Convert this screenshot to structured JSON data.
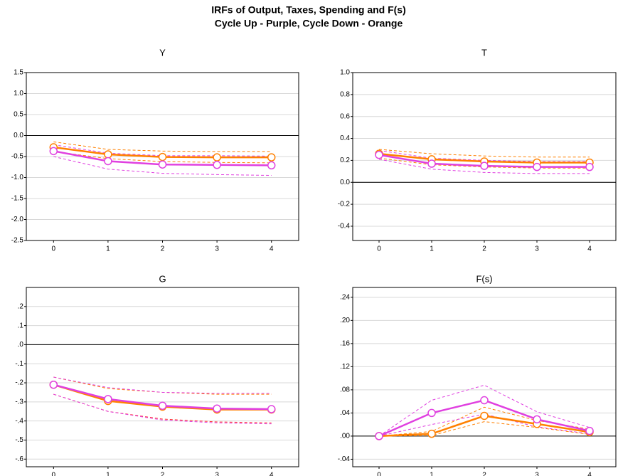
{
  "title": "IRFs of Output, Taxes, Spending and F(s)",
  "subtitle": "Cycle Up - Purple, Cycle Down - Orange",
  "chart_data": [
    {
      "type": "line",
      "title": "Y",
      "x": [
        0,
        1,
        2,
        3,
        4
      ],
      "xlim": [
        -0.5,
        4.5
      ],
      "xticks": [
        0,
        1,
        2,
        3,
        4
      ],
      "ylim": [
        -2.5,
        1.5
      ],
      "yticks": [
        1.5,
        {
          "value": 1.0,
          "label": "1.0"
        },
        0.5,
        {
          "value": 0.0,
          "label": "0.0"
        },
        -0.5,
        {
          "value": -1.0,
          "label": "-1.0"
        },
        -1.5,
        {
          "value": -2.0,
          "label": "-2.0"
        },
        -2.5
      ],
      "grid": true,
      "series": [
        {
          "color": "#ff8000",
          "style": "dashed",
          "values": [
            -0.15,
            -0.33,
            -0.37,
            -0.38,
            -0.38
          ]
        },
        {
          "color": "#ff8000",
          "style": "dashed",
          "values": [
            -0.38,
            -0.55,
            -0.62,
            -0.64,
            -0.65
          ]
        },
        {
          "color": "#e040e0",
          "style": "dashed",
          "values": [
            -0.22,
            -0.42,
            -0.48,
            -0.48,
            -0.49
          ]
        },
        {
          "color": "#e040e0",
          "style": "dashed",
          "values": [
            -0.5,
            -0.8,
            -0.9,
            -0.93,
            -0.95
          ]
        },
        {
          "color": "#ff8000",
          "style": "solid",
          "markers": true,
          "values": [
            -0.28,
            -0.45,
            -0.51,
            -0.52,
            -0.52
          ]
        },
        {
          "color": "#e040e0",
          "style": "solid",
          "markers": true,
          "values": [
            -0.37,
            -0.61,
            -0.69,
            -0.7,
            -0.71
          ]
        }
      ]
    },
    {
      "type": "line",
      "title": "T",
      "x": [
        0,
        1,
        2,
        3,
        4
      ],
      "xlim": [
        -0.5,
        4.5
      ],
      "xticks": [
        0,
        1,
        2,
        3,
        4
      ],
      "ylim": [
        -0.53,
        1.0
      ],
      "yticks": [
        {
          "value": 1.0,
          "label": "1.0"
        },
        0.8,
        0.6,
        0.4,
        0.2,
        {
          "value": 0.0,
          "label": "0.0"
        },
        -0.2,
        -0.4
      ],
      "grid": true,
      "series": [
        {
          "color": "#ff8000",
          "style": "dashed",
          "values": [
            0.3,
            0.26,
            0.24,
            0.23,
            0.23
          ]
        },
        {
          "color": "#ff8000",
          "style": "dashed",
          "values": [
            0.22,
            0.16,
            0.14,
            0.13,
            0.13
          ]
        },
        {
          "color": "#e040e0",
          "style": "dashed",
          "values": [
            0.29,
            0.22,
            0.2,
            0.19,
            0.19
          ]
        },
        {
          "color": "#e040e0",
          "style": "dashed",
          "values": [
            0.21,
            0.12,
            0.09,
            0.08,
            0.08
          ]
        },
        {
          "color": "#ff8000",
          "style": "solid",
          "markers": true,
          "values": [
            0.26,
            0.21,
            0.19,
            0.18,
            0.18
          ]
        },
        {
          "color": "#e040e0",
          "style": "solid",
          "markers": true,
          "values": [
            0.25,
            0.17,
            0.15,
            0.14,
            0.14
          ]
        }
      ]
    },
    {
      "type": "line",
      "title": "G",
      "x": [
        0,
        1,
        2,
        3,
        4
      ],
      "xlim": [
        -0.5,
        4.5
      ],
      "xticks": [
        0,
        1,
        2,
        3,
        4
      ],
      "ylim": [
        -0.64,
        0.3
      ],
      "yticks": [
        {
          "value": 0.2,
          "label": ".2"
        },
        {
          "value": 0.1,
          "label": ".1"
        },
        {
          "value": 0.0,
          "label": ".0"
        },
        {
          "value": -0.1,
          "label": "-.1"
        },
        {
          "value": -0.2,
          "label": "-.2"
        },
        {
          "value": -0.3,
          "label": "-.3"
        },
        {
          "value": -0.4,
          "label": "-.4"
        },
        {
          "value": -0.5,
          "label": "-.5"
        },
        {
          "value": -0.6,
          "label": "-.6"
        }
      ],
      "grid": true,
      "series": [
        {
          "color": "#ff8000",
          "style": "dashed",
          "values": [
            -0.17,
            -0.23,
            -0.25,
            -0.26,
            -0.26
          ]
        },
        {
          "color": "#ff3030",
          "style": "dashed",
          "values": [
            -0.26,
            -0.35,
            -0.39,
            -0.405,
            -0.41
          ]
        },
        {
          "color": "#e040e0",
          "style": "dashed",
          "values": [
            -0.17,
            -0.225,
            -0.25,
            -0.255,
            -0.255
          ]
        },
        {
          "color": "#e040e0",
          "style": "dashed",
          "values": [
            -0.26,
            -0.35,
            -0.395,
            -0.41,
            -0.415
          ]
        },
        {
          "color": "#ff8000",
          "style": "solid",
          "markers": true,
          "values": [
            -0.21,
            -0.295,
            -0.325,
            -0.34,
            -0.34
          ]
        },
        {
          "color": "#e040e0",
          "style": "solid",
          "markers": true,
          "values": [
            -0.21,
            -0.285,
            -0.32,
            -0.335,
            -0.338
          ]
        }
      ]
    },
    {
      "type": "line",
      "title": "F(s)",
      "x": [
        0,
        1,
        2,
        3,
        4
      ],
      "xlim": [
        -0.5,
        4.5
      ],
      "xticks": [
        0,
        1,
        2,
        3,
        4
      ],
      "ylim": [
        -0.053,
        0.257
      ],
      "yticks": [
        {
          "value": 0.24,
          "label": ".24"
        },
        {
          "value": 0.2,
          "label": ".20"
        },
        {
          "value": 0.16,
          "label": ".16"
        },
        {
          "value": 0.12,
          "label": ".12"
        },
        {
          "value": 0.08,
          "label": ".08"
        },
        {
          "value": 0.04,
          "label": ".04"
        },
        {
          "value": 0.0,
          "label": ".00"
        },
        {
          "value": -0.04,
          "label": "-.04"
        }
      ],
      "grid": true,
      "series": [
        {
          "color": "#ff8000",
          "style": "dashed",
          "values": [
            0,
            0.008,
            0.05,
            0.027,
            0.012
          ]
        },
        {
          "color": "#ff8000",
          "style": "dashed",
          "values": [
            0,
            0.001,
            0.025,
            0.015,
            0.003
          ]
        },
        {
          "color": "#e040e0",
          "style": "dashed",
          "values": [
            0,
            0.062,
            0.088,
            0.042,
            0.015
          ]
        },
        {
          "color": "#e040e0",
          "style": "dashed",
          "values": [
            0,
            0.02,
            0.038,
            0.016,
            0.004
          ]
        },
        {
          "color": "#ff8000",
          "style": "solid",
          "markers": true,
          "values": [
            0,
            0.004,
            0.035,
            0.021,
            0.007
          ]
        },
        {
          "color": "#e040e0",
          "style": "solid",
          "markers": true,
          "values": [
            0,
            0.04,
            0.062,
            0.029,
            0.009
          ]
        }
      ]
    }
  ]
}
